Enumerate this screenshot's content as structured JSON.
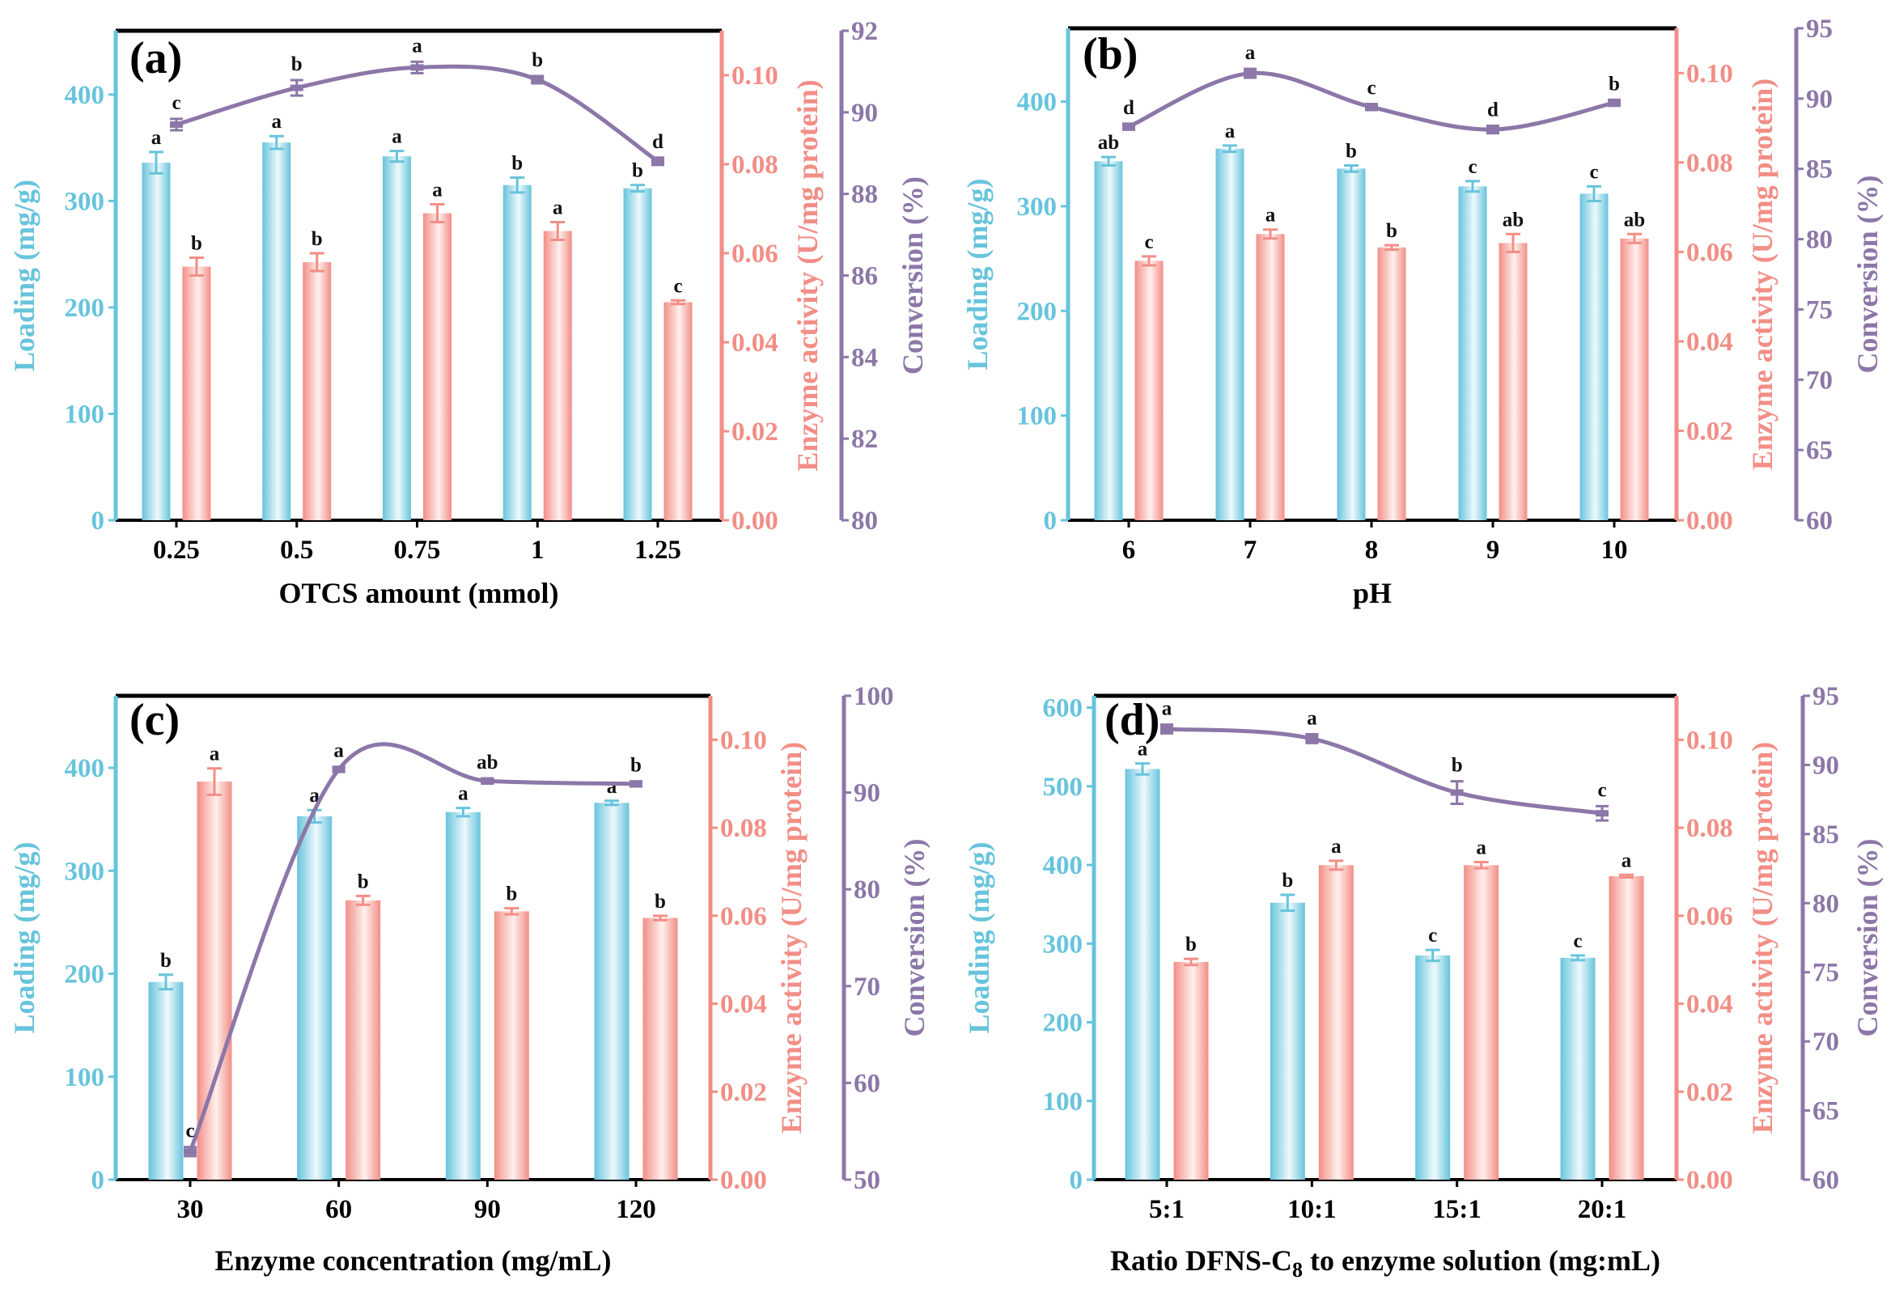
{
  "colors": {
    "loading": "#67c4dc",
    "loading_light": "#eef9fc",
    "enzyme": "#f28e86",
    "enzyme_light": "#fff0ee",
    "conversion": "#8c77a8",
    "frame": "#000000"
  },
  "chart_data": [
    {
      "type": "bar",
      "panel_label": "(a)",
      "xlabel": "OTCS amount (mmol)",
      "xlabel_sub": "",
      "xlabel_after": "",
      "categories": [
        "0.25",
        "0.5",
        "0.75",
        "1",
        "1.25"
      ],
      "left_axis": {
        "title": "Loading (mg/g)",
        "range": [
          0,
          460
        ],
        "ticks": [
          "0",
          "100",
          "200",
          "300",
          "400"
        ]
      },
      "right_axis_1": {
        "title": "Enzyme activity (U/mg protein)",
        "range": [
          0,
          0.11
        ],
        "ticks": [
          "0.00",
          "0.02",
          "0.04",
          "0.06",
          "0.08",
          "0.10"
        ]
      },
      "right_axis_2": {
        "title": "Conversion (%)",
        "range": [
          80,
          92
        ],
        "ticks": [
          "80",
          "82",
          "84",
          "86",
          "88",
          "90",
          "92"
        ]
      },
      "series": [
        {
          "name": "Loading",
          "axis": "left",
          "values": [
            336,
            355,
            342,
            315,
            312
          ],
          "errors": [
            10,
            6,
            5,
            7,
            3
          ],
          "labels": [
            "a",
            "a",
            "a",
            "b",
            "b"
          ]
        },
        {
          "name": "Enzyme activity",
          "axis": "right1",
          "values": [
            0.057,
            0.058,
            0.069,
            0.065,
            0.049
          ],
          "errors": [
            0.002,
            0.002,
            0.002,
            0.002,
            0.0004
          ],
          "labels": [
            "b",
            "b",
            "a",
            "a",
            "c"
          ]
        },
        {
          "name": "Conversion",
          "axis": "right2",
          "values": [
            89.7,
            90.6,
            91.1,
            90.8,
            88.8
          ],
          "errors": [
            0.1,
            0.15,
            0.1,
            0.05,
            0.05
          ],
          "labels": [
            "c",
            "b",
            "a",
            "b",
            "d"
          ]
        }
      ]
    },
    {
      "type": "bar",
      "panel_label": "(b)",
      "xlabel": "pH",
      "xlabel_sub": "",
      "xlabel_after": "",
      "categories": [
        "6",
        "7",
        "8",
        "9",
        "10"
      ],
      "left_axis": {
        "title": "Loading (mg/g)",
        "range": [
          0,
          470
        ],
        "ticks": [
          "0",
          "100",
          "200",
          "300",
          "400"
        ]
      },
      "right_axis_1": {
        "title": "Enzyme activity (U/mg protein)",
        "range": [
          0,
          0.11
        ],
        "ticks": [
          "0.00",
          "0.02",
          "0.04",
          "0.06",
          "0.08",
          "0.10"
        ]
      },
      "right_axis_2": {
        "title": "Conversion (%)",
        "range": [
          60,
          95
        ],
        "ticks": [
          "60",
          "65",
          "70",
          "75",
          "80",
          "85",
          "90",
          "95"
        ]
      },
      "series": [
        {
          "name": "Loading",
          "axis": "left",
          "values": [
            343,
            355,
            336,
            319,
            312
          ],
          "errors": [
            4,
            3,
            3,
            5,
            7
          ],
          "labels": [
            "ab",
            "a",
            "b",
            "c",
            "c"
          ]
        },
        {
          "name": "Enzyme activity",
          "axis": "right1",
          "values": [
            0.058,
            0.064,
            0.061,
            0.062,
            0.063
          ],
          "errors": [
            0.001,
            0.001,
            0.0005,
            0.002,
            0.001
          ],
          "labels": [
            "c",
            "a",
            "b",
            "ab",
            "ab"
          ]
        },
        {
          "name": "Conversion",
          "axis": "right2",
          "values": [
            88.0,
            91.8,
            89.4,
            87.8,
            89.7
          ],
          "errors": [
            0.1,
            0.2,
            0.1,
            0.15,
            0.1
          ],
          "labels": [
            "d",
            "a",
            "c",
            "d",
            "b"
          ]
        }
      ]
    },
    {
      "type": "bar",
      "panel_label": "(c)",
      "xlabel": "Enzyme concentration (mg/mL)",
      "xlabel_sub": "",
      "xlabel_after": "",
      "categories": [
        "30",
        "60",
        "90",
        "120"
      ],
      "left_axis": {
        "title": "Loading (mg/g)",
        "range": [
          0,
          470
        ],
        "ticks": [
          "0",
          "100",
          "200",
          "300",
          "400"
        ]
      },
      "right_axis_1": {
        "title": "Enzyme activity (U/mg protein)",
        "range": [
          0,
          0.11
        ],
        "ticks": [
          "0.00",
          "0.02",
          "0.04",
          "0.06",
          "0.08",
          "0.10"
        ]
      },
      "right_axis_2": {
        "title": "Conversion (%)",
        "range": [
          50,
          100
        ],
        "ticks": [
          "50",
          "60",
          "70",
          "80",
          "90",
          "100"
        ]
      },
      "series": [
        {
          "name": "Loading",
          "axis": "left",
          "values": [
            192,
            353,
            357,
            366
          ],
          "errors": [
            7,
            6,
            4,
            2
          ],
          "labels": [
            "b",
            "a",
            "a",
            "a"
          ]
        },
        {
          "name": "Enzyme activity",
          "axis": "right1",
          "values": [
            0.0905,
            0.0635,
            0.061,
            0.0595
          ],
          "errors": [
            0.003,
            0.001,
            0.0007,
            0.0005
          ],
          "labels": [
            "a",
            "b",
            "b",
            "b"
          ]
        },
        {
          "name": "Conversion",
          "axis": "right2",
          "values": [
            52.9,
            92.4,
            91.2,
            90.9
          ],
          "errors": [
            0.3,
            0.1,
            0.1,
            0.1
          ],
          "labels": [
            "c",
            "a",
            "ab",
            "b"
          ]
        }
      ]
    },
    {
      "type": "bar",
      "panel_label": "(d)",
      "xlabel": "Ratio DFNS-C",
      "xlabel_sub": "8",
      "xlabel_after": " to enzyme solution (mg:mL)",
      "categories": [
        "5:1",
        "10:1",
        "15:1",
        "20:1"
      ],
      "left_axis": {
        "title": "Loading (mg/g)",
        "range": [
          0,
          615
        ],
        "ticks": [
          "0",
          "100",
          "200",
          "300",
          "400",
          "500",
          "600"
        ]
      },
      "right_axis_1": {
        "title": "Enzyme activity (U/mg protein)",
        "range": [
          0,
          0.11
        ],
        "ticks": [
          "0.00",
          "0.02",
          "0.04",
          "0.06",
          "0.08",
          "0.10"
        ]
      },
      "right_axis_2": {
        "title": "Conversion (%)",
        "range": [
          60,
          95
        ],
        "ticks": [
          "60",
          "65",
          "70",
          "75",
          "80",
          "85",
          "90",
          "95"
        ]
      },
      "series": [
        {
          "name": "Loading",
          "axis": "left",
          "values": [
            522,
            352,
            285,
            282
          ],
          "errors": [
            7,
            10,
            7,
            3
          ],
          "labels": [
            "a",
            "b",
            "c",
            "c"
          ]
        },
        {
          "name": "Enzyme activity",
          "axis": "right1",
          "values": [
            0.0495,
            0.0715,
            0.0715,
            0.069
          ],
          "errors": [
            0.0007,
            0.001,
            0.0007,
            0.0003
          ],
          "labels": [
            "b",
            "a",
            "a",
            "a"
          ]
        },
        {
          "name": "Conversion",
          "axis": "right2",
          "values": [
            92.6,
            91.9,
            88.0,
            86.5
          ],
          "errors": [
            0.2,
            0.2,
            0.7,
            0.4
          ],
          "labels": [
            "a",
            "a",
            "b",
            "c"
          ]
        }
      ]
    }
  ]
}
